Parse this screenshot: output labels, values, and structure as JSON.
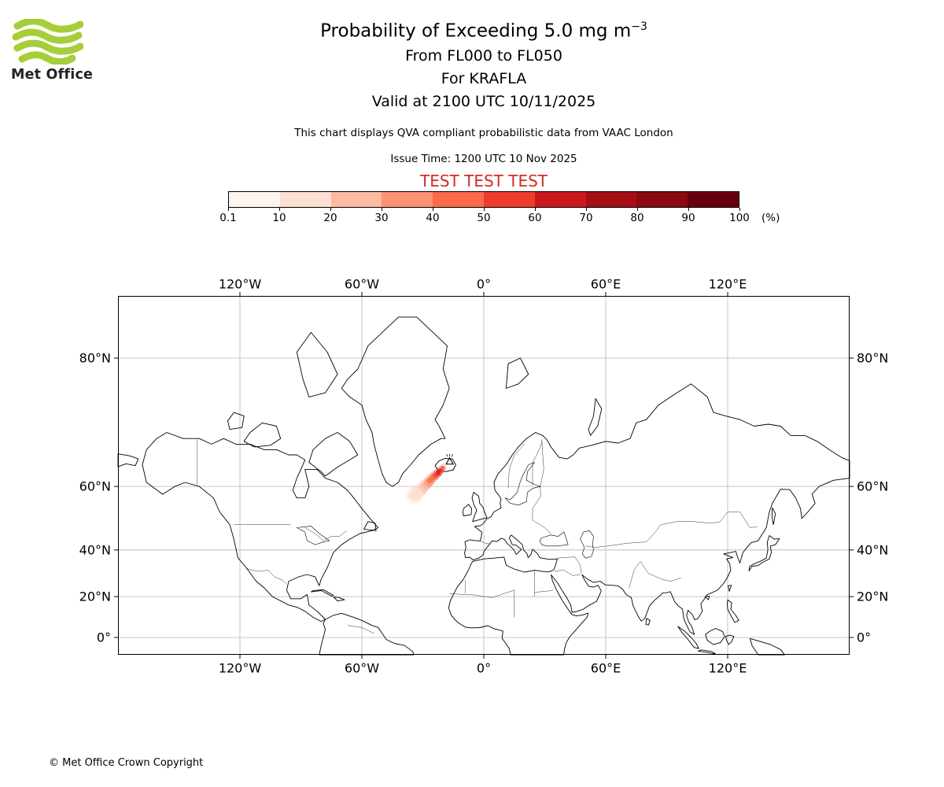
{
  "colors": {
    "logo_green": "#A6CE39",
    "test_red": "#D42A20",
    "grid_gray": "#b4b4b4"
  },
  "header": {
    "logo_text": "Met Office",
    "title_prefix": "Probability of Exceeding 5.0 mg m",
    "title_superscript": "−3",
    "subtitle_levels": "From FL000 to FL050",
    "subtitle_volcano": "For KRAFLA",
    "subtitle_valid": "Valid at 2100 UTC 10/11/2025",
    "description": "This chart displays QVA compliant probabilistic data from VAAC London",
    "issue_time": "Issue Time: 1200 UTC 10 Nov 2025",
    "test_banner": "TEST TEST TEST"
  },
  "colorbar": {
    "tick_labels": [
      "0.1",
      "10",
      "20",
      "30",
      "40",
      "50",
      "60",
      "70",
      "80",
      "90",
      "100"
    ],
    "unit_label": "(%)",
    "segment_colors": [
      "#fff5f0",
      "#fee0d2",
      "#fcbba1",
      "#fc9272",
      "#fb6a4a",
      "#ef3b2c",
      "#cb181d",
      "#a50f15",
      "#8b0a10",
      "#67000d"
    ]
  },
  "map": {
    "x_tick_labels": [
      "120°W",
      "60°W",
      "0°",
      "60°E",
      "120°E"
    ],
    "x_tick_lons": [
      -120,
      -60,
      0,
      60,
      120
    ],
    "y_tick_labels": [
      "80°N",
      "60°N",
      "40°N",
      "20°N",
      "0°"
    ],
    "y_tick_lats": [
      80,
      60,
      40,
      20,
      0
    ],
    "volcano": {
      "name": "KRAFLA",
      "lon": -16.8,
      "lat": 65.7
    },
    "plume": {
      "points": [
        {
          "lon": -20.2,
          "lat": 64.4,
          "v": 45,
          "r": 2.4
        },
        {
          "lon": -21.4,
          "lat": 63.8,
          "v": 55,
          "r": 2.8
        },
        {
          "lon": -22.7,
          "lat": 63.2,
          "v": 60,
          "r": 3.0
        },
        {
          "lon": -24.1,
          "lat": 62.6,
          "v": 55,
          "r": 3.2
        },
        {
          "lon": -25.5,
          "lat": 62.0,
          "v": 48,
          "r": 3.4
        },
        {
          "lon": -26.9,
          "lat": 61.3,
          "v": 40,
          "r": 3.6
        },
        {
          "lon": -28.3,
          "lat": 60.6,
          "v": 33,
          "r": 3.8
        },
        {
          "lon": -29.7,
          "lat": 59.9,
          "v": 27,
          "r": 4.0
        },
        {
          "lon": -31.1,
          "lat": 59.2,
          "v": 20,
          "r": 4.4
        },
        {
          "lon": -32.5,
          "lat": 58.5,
          "v": 15,
          "r": 4.8
        },
        {
          "lon": -33.7,
          "lat": 58.0,
          "v": 12,
          "r": 5.2
        },
        {
          "lon": -34.7,
          "lat": 57.6,
          "v": 10,
          "r": 5.6
        }
      ]
    }
  },
  "footer": {
    "copyright": "© Met Office Crown Copyright"
  }
}
